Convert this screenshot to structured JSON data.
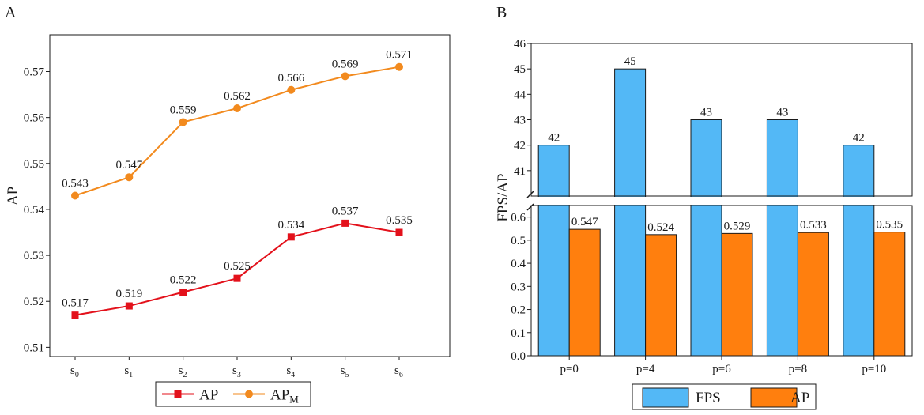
{
  "panels": {
    "a_label": "A",
    "b_label": "B"
  },
  "chart_data": [
    {
      "type": "line",
      "title": "",
      "xlabel": "",
      "ylabel": "AP",
      "categories": [
        {
          "base": "s",
          "sub": "0"
        },
        {
          "base": "s",
          "sub": "1"
        },
        {
          "base": "s",
          "sub": "2"
        },
        {
          "base": "s",
          "sub": "3"
        },
        {
          "base": "s",
          "sub": "4"
        },
        {
          "base": "s",
          "sub": "5"
        },
        {
          "base": "s",
          "sub": "6"
        }
      ],
      "ylim": [
        0.508,
        0.578
      ],
      "yticks": [
        0.51,
        0.52,
        0.53,
        0.54,
        0.55,
        0.56,
        0.57
      ],
      "ytick_labels": [
        "0.51",
        "0.52",
        "0.53",
        "0.54",
        "0.55",
        "0.56",
        "0.57"
      ],
      "series": [
        {
          "name": "AP",
          "name_sub": "",
          "color": "#e3111b",
          "marker": "square",
          "values": [
            0.517,
            0.519,
            0.522,
            0.525,
            0.534,
            0.537,
            0.535
          ],
          "labels": [
            "0.517",
            "0.519",
            "0.522",
            "0.525",
            "0.534",
            "0.537",
            "0.535"
          ]
        },
        {
          "name": "AP",
          "name_sub": "M",
          "color": "#f28a1e",
          "marker": "circle",
          "values": [
            0.543,
            0.547,
            0.559,
            0.562,
            0.566,
            0.569,
            0.571
          ],
          "labels": [
            "0.543",
            "0.547",
            "0.559",
            "0.562",
            "0.566",
            "0.569",
            "0.571"
          ]
        }
      ],
      "legend": "bottom-center"
    },
    {
      "type": "bar",
      "title": "",
      "xlabel": "",
      "ylabel": "FPS/AP",
      "categories": [
        "p=0",
        "p=4",
        "p=6",
        "p=8",
        "p=10"
      ],
      "axis_break": true,
      "upper_ylim": [
        40,
        46
      ],
      "upper_yticks": [
        41,
        42,
        43,
        44,
        45,
        46
      ],
      "upper_ytick_labels": [
        "41",
        "42",
        "43",
        "44",
        "45",
        "46"
      ],
      "lower_ylim": [
        0,
        0.65
      ],
      "lower_yticks": [
        0.0,
        0.1,
        0.2,
        0.3,
        0.4,
        0.5,
        0.6
      ],
      "lower_ytick_labels": [
        "0.0",
        "0.1",
        "0.2",
        "0.3",
        "0.4",
        "0.5",
        "0.6"
      ],
      "series": [
        {
          "name": "FPS",
          "color": "#53b8f6",
          "values": [
            42,
            45,
            43,
            43,
            42
          ],
          "labels": [
            "42",
            "45",
            "43",
            "43",
            "42"
          ]
        },
        {
          "name": "AP",
          "color": "#ff7f0e",
          "values": [
            0.547,
            0.524,
            0.529,
            0.533,
            0.535
          ],
          "labels": [
            "0.547",
            "0.524",
            "0.529",
            "0.533",
            "0.535"
          ]
        }
      ],
      "legend": "bottom-center"
    }
  ]
}
